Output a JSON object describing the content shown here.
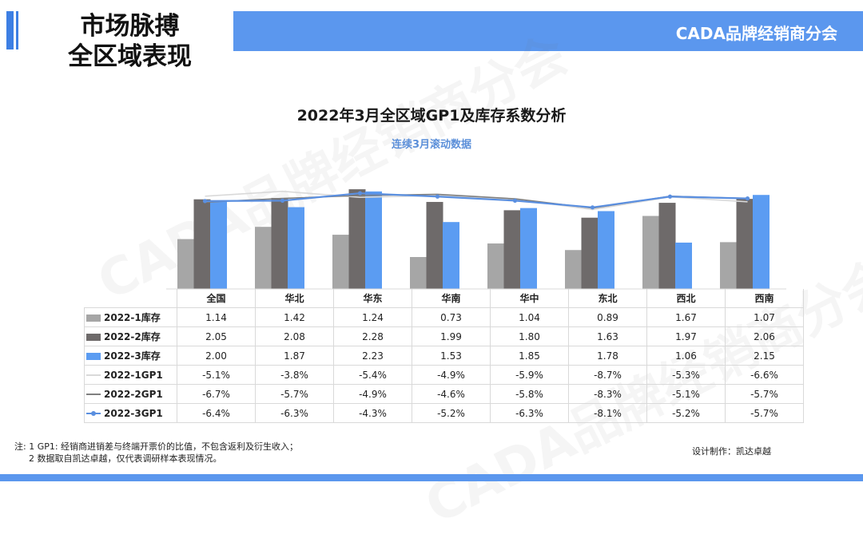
{
  "header": {
    "title_line1": "市场脉搏",
    "title_line2": "全区域表现",
    "org_name": "CADA品牌经销商分会"
  },
  "watermark": "CADA品牌经销商分会",
  "colors": {
    "accent": "#5b97ee",
    "inv_2022_1": "#a6a6a6",
    "inv_2022_2": "#6e6a6a",
    "inv_2022_3": "#5b9cf2",
    "gp_2022_1": "#d9d9d9",
    "gp_2022_2": "#7f7f7f",
    "gp_2022_3": "#5a8fe0"
  },
  "chart_data": {
    "type": "bar",
    "title": "2022年3月全区域GP1及库存系数分析",
    "subtitle": "连续3月滚动数据",
    "categories": [
      "全国",
      "华北",
      "华东",
      "华南",
      "华中",
      "东北",
      "西北",
      "西南"
    ],
    "series": [
      {
        "name": "2022-1库存",
        "kind": "bar",
        "values": [
          1.14,
          1.42,
          1.24,
          0.73,
          1.04,
          0.89,
          1.67,
          1.07
        ],
        "labels": [
          "1.14",
          "1.42",
          "1.24",
          "0.73",
          "1.04",
          "0.89",
          "1.67",
          "1.07"
        ]
      },
      {
        "name": "2022-2库存",
        "kind": "bar",
        "values": [
          2.05,
          2.08,
          2.28,
          1.99,
          1.8,
          1.63,
          1.97,
          2.06
        ],
        "labels": [
          "2.05",
          "2.08",
          "2.28",
          "1.99",
          "1.80",
          "1.63",
          "1.97",
          "2.06"
        ]
      },
      {
        "name": "2022-3库存",
        "kind": "bar",
        "values": [
          2.0,
          1.87,
          2.23,
          1.53,
          1.85,
          1.78,
          1.06,
          2.15
        ],
        "labels": [
          "2.00",
          "1.87",
          "2.23",
          "1.53",
          "1.85",
          "1.78",
          "1.06",
          "2.15"
        ]
      },
      {
        "name": "2022-1GP1",
        "kind": "line",
        "values": [
          -5.1,
          -3.8,
          -5.4,
          -4.9,
          -5.9,
          -8.7,
          -5.3,
          -6.6
        ],
        "labels": [
          "-5.1%",
          "-3.8%",
          "-5.4%",
          "-4.9%",
          "-5.9%",
          "-8.7%",
          "-5.3%",
          "-6.6%"
        ]
      },
      {
        "name": "2022-2GP1",
        "kind": "line",
        "values": [
          -6.7,
          -5.7,
          -4.9,
          -4.6,
          -5.8,
          -8.3,
          -5.1,
          -5.7
        ],
        "labels": [
          "-6.7%",
          "-5.7%",
          "-4.9%",
          "-4.6%",
          "-5.8%",
          "-8.3%",
          "-5.1%",
          "-5.7%"
        ]
      },
      {
        "name": "2022-3GP1",
        "kind": "line",
        "values": [
          -6.4,
          -6.3,
          -4.3,
          -5.2,
          -6.3,
          -8.1,
          -5.2,
          -5.7
        ],
        "labels": [
          "-6.4%",
          "-6.3%",
          "-4.3%",
          "-5.2%",
          "-6.3%",
          "-8.1%",
          "-5.2%",
          "-5.7%"
        ]
      }
    ],
    "bar_axis_range": [
      0,
      2.3
    ],
    "line_axis_range": [
      -30,
      -3
    ],
    "legend": "data-table-below"
  },
  "notes": {
    "line1": "注: 1 GP1: 经销商进销差与终端开票价的比值，不包含返利及衍生收入；",
    "line2": "2 数据取自凯达卓越，仅代表调研样本表现情况。"
  },
  "credit": "设计制作：凯达卓越"
}
